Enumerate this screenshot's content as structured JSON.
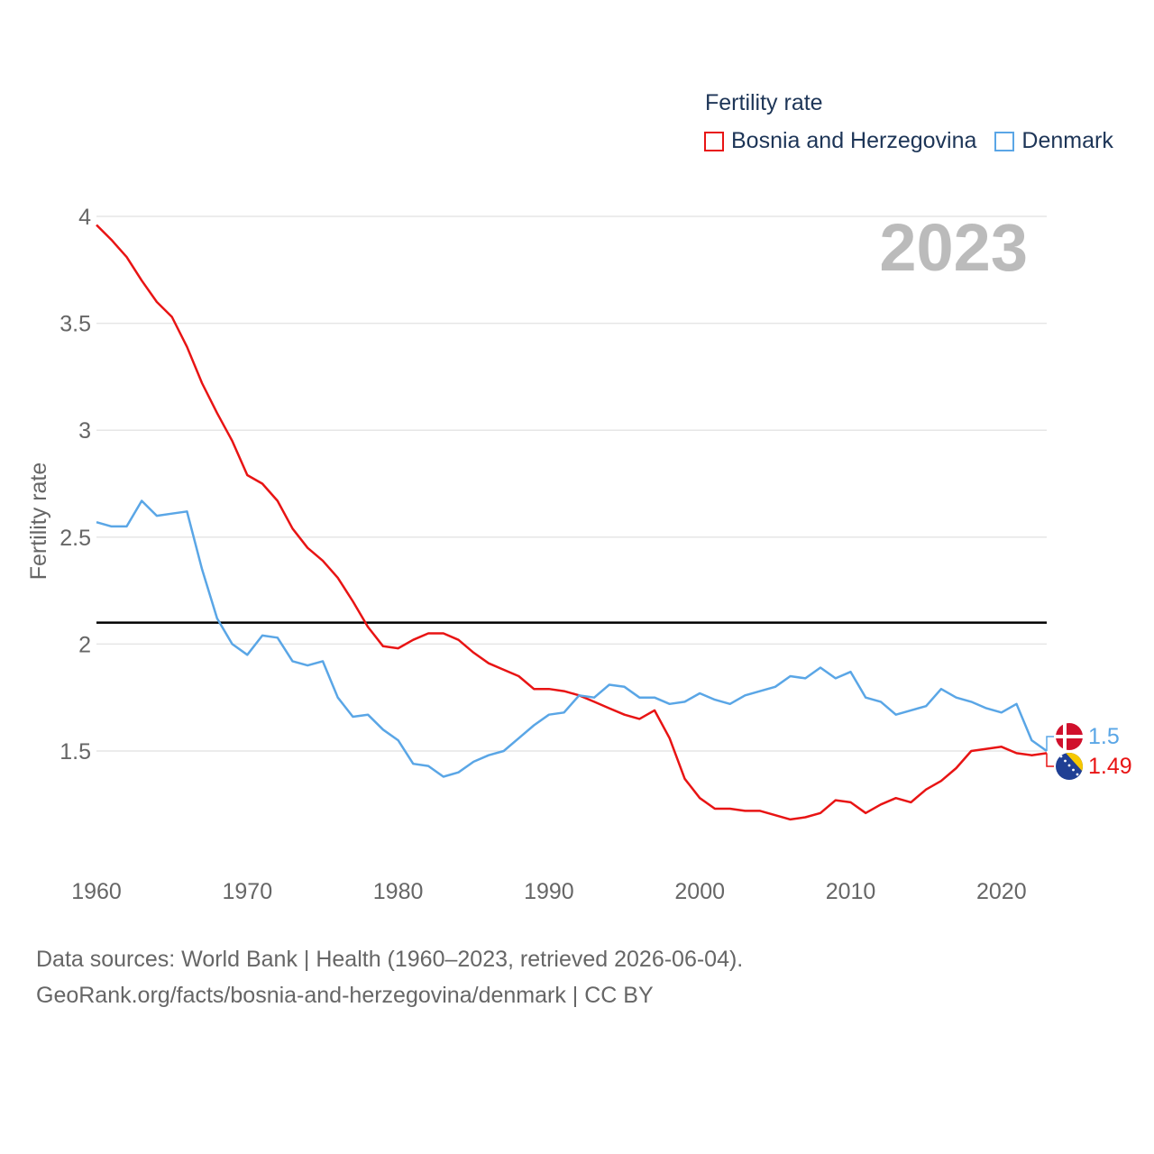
{
  "chart_data": {
    "type": "line",
    "legend_title": "Fertility rate",
    "ylabel": "Fertility rate",
    "xlabel": "",
    "year_display": "2023",
    "xlim": [
      1960,
      2023
    ],
    "ylim": [
      1.0,
      4.0
    ],
    "x_ticks": [
      1960,
      1970,
      1980,
      1990,
      2000,
      2010,
      2020
    ],
    "y_ticks": [
      1.5,
      2,
      2.5,
      3,
      3.5,
      4
    ],
    "y_tick_labels": [
      "1.5",
      "2",
      "2.5",
      "3",
      "3.5",
      "4"
    ],
    "reference_line": {
      "y": 2.1,
      "color": "#000000"
    },
    "legend_position": "top-right",
    "series": [
      {
        "name": "Bosnia and Herzegovina",
        "color": "#e81414",
        "end_label": "1.49",
        "flag_icon": "bosnia-flag-icon",
        "x": [
          1960,
          1961,
          1962,
          1963,
          1964,
          1965,
          1966,
          1967,
          1968,
          1969,
          1970,
          1971,
          1972,
          1973,
          1974,
          1975,
          1976,
          1977,
          1978,
          1979,
          1980,
          1981,
          1982,
          1983,
          1984,
          1985,
          1986,
          1987,
          1988,
          1989,
          1990,
          1991,
          1992,
          1993,
          1994,
          1995,
          1996,
          1997,
          1998,
          1999,
          2000,
          2001,
          2002,
          2003,
          2004,
          2005,
          2006,
          2007,
          2008,
          2009,
          2010,
          2011,
          2012,
          2013,
          2014,
          2015,
          2016,
          2017,
          2018,
          2019,
          2020,
          2021,
          2022,
          2023
        ],
        "values": [
          3.96,
          3.89,
          3.81,
          3.7,
          3.6,
          3.53,
          3.39,
          3.22,
          3.08,
          2.95,
          2.79,
          2.75,
          2.67,
          2.54,
          2.45,
          2.39,
          2.31,
          2.2,
          2.08,
          1.99,
          1.98,
          2.02,
          2.05,
          2.05,
          2.02,
          1.96,
          1.91,
          1.88,
          1.85,
          1.79,
          1.79,
          1.78,
          1.76,
          1.73,
          1.7,
          1.67,
          1.65,
          1.69,
          1.56,
          1.37,
          1.28,
          1.23,
          1.23,
          1.22,
          1.22,
          1.2,
          1.18,
          1.19,
          1.21,
          1.27,
          1.26,
          1.21,
          1.25,
          1.28,
          1.26,
          1.32,
          1.36,
          1.42,
          1.5,
          1.51,
          1.52,
          1.49,
          1.48,
          1.49
        ]
      },
      {
        "name": "Denmark",
        "color": "#5aa6e6",
        "end_label": "1.5",
        "flag_icon": "denmark-flag-icon",
        "x": [
          1960,
          1961,
          1962,
          1963,
          1964,
          1965,
          1966,
          1967,
          1968,
          1969,
          1970,
          1971,
          1972,
          1973,
          1974,
          1975,
          1976,
          1977,
          1978,
          1979,
          1980,
          1981,
          1982,
          1983,
          1984,
          1985,
          1986,
          1987,
          1988,
          1989,
          1990,
          1991,
          1992,
          1993,
          1994,
          1995,
          1996,
          1997,
          1998,
          1999,
          2000,
          2001,
          2002,
          2003,
          2004,
          2005,
          2006,
          2007,
          2008,
          2009,
          2010,
          2011,
          2012,
          2013,
          2014,
          2015,
          2016,
          2017,
          2018,
          2019,
          2020,
          2021,
          2022,
          2023
        ],
        "values": [
          2.57,
          2.55,
          2.55,
          2.67,
          2.6,
          2.61,
          2.62,
          2.35,
          2.12,
          2.0,
          1.95,
          2.04,
          2.03,
          1.92,
          1.9,
          1.92,
          1.75,
          1.66,
          1.67,
          1.6,
          1.55,
          1.44,
          1.43,
          1.38,
          1.4,
          1.45,
          1.48,
          1.5,
          1.56,
          1.62,
          1.67,
          1.68,
          1.76,
          1.75,
          1.81,
          1.8,
          1.75,
          1.75,
          1.72,
          1.73,
          1.77,
          1.74,
          1.72,
          1.76,
          1.78,
          1.8,
          1.85,
          1.84,
          1.89,
          1.84,
          1.87,
          1.75,
          1.73,
          1.67,
          1.69,
          1.71,
          1.79,
          1.75,
          1.73,
          1.7,
          1.68,
          1.72,
          1.55,
          1.5
        ]
      }
    ]
  },
  "footer": {
    "source_line": "Data sources: World Bank | Health (1960–2023, retrieved 2026-06-04).",
    "url_line": "GeoRank.org/facts/bosnia-and-herzegovina/denmark | CC BY"
  }
}
